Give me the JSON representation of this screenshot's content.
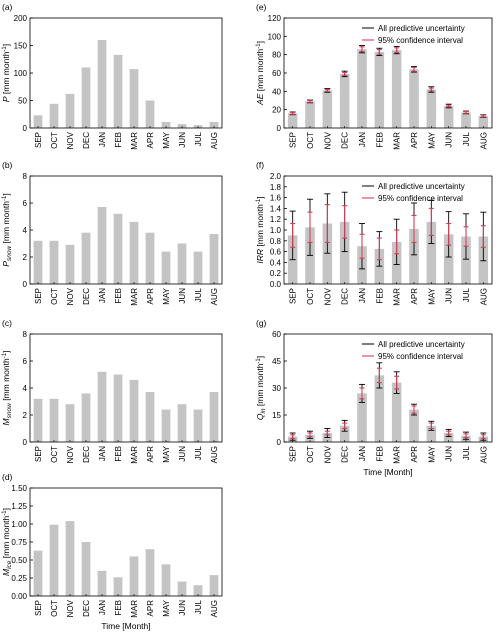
{
  "chart_data": [
    {
      "panel": "(a)",
      "type": "bar",
      "ylabel_symbol": "P",
      "ylabel_sub": "",
      "ylabel_unit": "[mm month",
      "ylabel_exp": "-1",
      "ylabel_close": "]",
      "categories": [
        "SEP",
        "OCT",
        "NOV",
        "DEC",
        "JAN",
        "FEB",
        "MAR",
        "APR",
        "MAY",
        "JUN",
        "JUL",
        "AUG"
      ],
      "values": [
        23,
        44,
        62,
        110,
        160,
        133,
        107,
        50,
        11,
        7,
        5,
        11
      ],
      "ylim": [
        0,
        200
      ],
      "yticks": [
        "0",
        "50",
        "100",
        "150",
        "200"
      ],
      "xlabel": ""
    },
    {
      "panel": "(b)",
      "type": "bar",
      "ylabel_symbol": "P",
      "ylabel_sub": "snow",
      "ylabel_unit": "[mm month",
      "ylabel_exp": "-1",
      "ylabel_close": "]",
      "categories": [
        "SEP",
        "OCT",
        "NOV",
        "DEC",
        "JAN",
        "FEB",
        "MAR",
        "APR",
        "MAY",
        "JUN",
        "JUL",
        "AUG"
      ],
      "values": [
        3.2,
        3.2,
        2.9,
        3.8,
        5.7,
        5.2,
        4.6,
        3.8,
        2.4,
        3.0,
        2.4,
        3.7
      ],
      "ylim": [
        0,
        8
      ],
      "yticks": [
        "0",
        "2",
        "4",
        "6",
        "8"
      ],
      "xlabel": ""
    },
    {
      "panel": "(c)",
      "type": "bar",
      "ylabel_symbol": "M",
      "ylabel_sub": "snow",
      "ylabel_unit": "[mm month",
      "ylabel_exp": "-1",
      "ylabel_close": "]",
      "categories": [
        "SEP",
        "OCT",
        "NOV",
        "DEC",
        "JAN",
        "FEB",
        "MAR",
        "APR",
        "MAY",
        "JUN",
        "JUL",
        "AUG"
      ],
      "values": [
        3.2,
        3.2,
        2.8,
        3.6,
        5.2,
        5.0,
        4.6,
        3.7,
        2.4,
        2.8,
        2.4,
        3.7
      ],
      "ylim": [
        0,
        8
      ],
      "yticks": [
        "0",
        "2",
        "4",
        "6",
        "8"
      ],
      "xlabel": ""
    },
    {
      "panel": "(d)",
      "type": "bar",
      "ylabel_symbol": "M",
      "ylabel_sub": "ice",
      "ylabel_unit": "[mm month",
      "ylabel_exp": "-1",
      "ylabel_close": "]",
      "categories": [
        "SEP",
        "OCT",
        "NOV",
        "DEC",
        "JAN",
        "FEB",
        "MAR",
        "APR",
        "MAY",
        "JUN",
        "JUL",
        "AUG"
      ],
      "values": [
        0.63,
        0.99,
        1.04,
        0.75,
        0.35,
        0.26,
        0.55,
        0.65,
        0.44,
        0.2,
        0.15,
        0.29
      ],
      "ylim": [
        0,
        1.5
      ],
      "yticks": [
        "0.00",
        "0.25",
        "0.50",
        "0.75",
        "1.00",
        "1.25",
        "1.50"
      ],
      "xlabel": "Time [Month]"
    },
    {
      "panel": "(e)",
      "type": "bar",
      "ylabel_symbol": "AE",
      "ylabel_sub": "",
      "ylabel_unit": "[mm month",
      "ylabel_exp": "-1",
      "ylabel_close": "]",
      "categories": [
        "SEP",
        "OCT",
        "NOV",
        "DEC",
        "JAN",
        "FEB",
        "MAR",
        "APR",
        "MAY",
        "JUN",
        "JUL",
        "AUG"
      ],
      "values": [
        16,
        29,
        41,
        59,
        86,
        83,
        85,
        64,
        42,
        24,
        17,
        13
      ],
      "pred_err": [
        1.5,
        1.5,
        2,
        3,
        4,
        4,
        4,
        3,
        3,
        2,
        1.5,
        1.5
      ],
      "conf_err": [
        1,
        1,
        1,
        1.5,
        2.5,
        2.5,
        2.5,
        2,
        1.5,
        1,
        1,
        1
      ],
      "ylim": [
        0,
        120
      ],
      "yticks": [
        "0",
        "20",
        "40",
        "60",
        "80",
        "100",
        "120"
      ],
      "xlabel": "",
      "legend": [
        "All predictive uncertainty",
        "95% confidence interval"
      ]
    },
    {
      "panel": "(f)",
      "type": "bar",
      "ylabel_symbol": "IRR",
      "ylabel_sub": "",
      "ylabel_unit": "[mm month",
      "ylabel_exp": "-1",
      "ylabel_close": "]",
      "categories": [
        "SEP",
        "OCT",
        "NOV",
        "DEC",
        "JAN",
        "FEB",
        "MAR",
        "APR",
        "MAY",
        "JUN",
        "JUL",
        "AUG"
      ],
      "values": [
        0.9,
        1.05,
        1.12,
        1.15,
        0.7,
        0.65,
        0.78,
        1.02,
        1.15,
        0.92,
        0.88,
        0.88
      ],
      "pred_err": [
        0.45,
        0.52,
        0.55,
        0.55,
        0.42,
        0.32,
        0.42,
        0.48,
        0.4,
        0.42,
        0.42,
        0.45
      ],
      "conf_err": [
        0.22,
        0.28,
        0.35,
        0.3,
        0.22,
        0.2,
        0.22,
        0.25,
        0.25,
        0.2,
        0.18,
        0.2
      ],
      "ylim": [
        0,
        2.0
      ],
      "yticks": [
        "0.0",
        "0.2",
        "0.4",
        "0.6",
        "0.8",
        "1.0",
        "1.2",
        "1.4",
        "1.6",
        "1.8",
        "2.0"
      ],
      "xlabel": "",
      "legend": [
        "All predictive uncertainty",
        "95% confidence interval"
      ]
    },
    {
      "panel": "(g)",
      "type": "bar",
      "ylabel_symbol": "Q",
      "ylabel_sub": "in",
      "ylabel_unit": "[mm month",
      "ylabel_exp": "-1",
      "ylabel_close": "]",
      "categories": [
        "SEP",
        "OCT",
        "NOV",
        "DEC",
        "JAN",
        "FEB",
        "MAR",
        "APR",
        "MAY",
        "JUN",
        "JUL",
        "AUG"
      ],
      "values": [
        3,
        4,
        5,
        9,
        27,
        37,
        33,
        18,
        9,
        5,
        3.5,
        3
      ],
      "pred_err": [
        2,
        2,
        2.5,
        3,
        5,
        7,
        6,
        3,
        2.5,
        2,
        2,
        2
      ],
      "conf_err": [
        1,
        1,
        1,
        1.5,
        3,
        4,
        3.5,
        2,
        1.5,
        1,
        1,
        1
      ],
      "ylim": [
        0,
        60
      ],
      "yticks": [
        "0",
        "15",
        "30",
        "45",
        "60"
      ],
      "xlabel": "Time [Month]",
      "legend": [
        "All predictive uncertainty",
        "95% confidence interval"
      ]
    }
  ]
}
